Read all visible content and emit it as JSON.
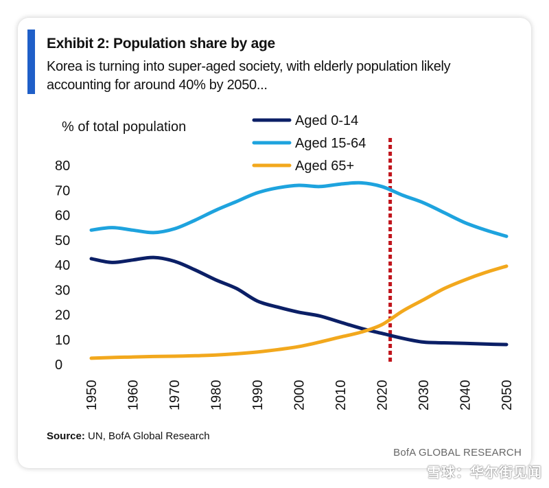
{
  "header": {
    "title": "Exhibit 2: Population share by age",
    "subtitle": "Korea is turning into super-aged society, with elderly population likely accounting for around 40% by 2050..."
  },
  "footer": {
    "source_label": "Source:",
    "source_text": " UN, BofA Global Research",
    "brand": "BofA GLOBAL RESEARCH",
    "watermark": "雪球：华尔街见闻"
  },
  "colors": {
    "accent": "#1f5fc8",
    "aged_0_14": "#0b1f66",
    "aged_15_64": "#1ea3de",
    "aged_65_plus": "#f2a81d",
    "marker_line": "#c0141b"
  },
  "chart_data": {
    "type": "line",
    "ylabel": "% of total population",
    "xlabel": "",
    "xlim": [
      1950,
      2050
    ],
    "ylim": [
      0,
      80
    ],
    "xticks": [
      "1950",
      "1960",
      "1970",
      "1980",
      "1990",
      "2000",
      "2010",
      "2020",
      "2030",
      "2040",
      "2050"
    ],
    "yticks": [
      "0",
      "10",
      "20",
      "30",
      "40",
      "50",
      "60",
      "70",
      "80"
    ],
    "grid": false,
    "legend_position": "top",
    "vertical_marker": {
      "x": 2022,
      "style": "dashed"
    },
    "x": [
      1950,
      1955,
      1960,
      1965,
      1970,
      1975,
      1980,
      1985,
      1990,
      1995,
      2000,
      2005,
      2010,
      2015,
      2020,
      2025,
      2030,
      2035,
      2040,
      2045,
      2050
    ],
    "series": [
      {
        "name": "Aged 0-14",
        "values": [
          42.5,
          41.0,
          42.0,
          43.0,
          41.5,
          38.0,
          34.0,
          30.5,
          25.5,
          23.0,
          21.0,
          19.5,
          17.0,
          14.5,
          12.5,
          10.5,
          9.0,
          8.7,
          8.5,
          8.2,
          8.0
        ]
      },
      {
        "name": "Aged 15-64",
        "values": [
          54.0,
          55.0,
          54.0,
          53.0,
          54.5,
          58.0,
          62.0,
          65.5,
          69.0,
          71.0,
          72.0,
          71.5,
          72.5,
          73.0,
          71.5,
          68.0,
          65.0,
          61.0,
          57.0,
          54.0,
          51.5
        ]
      },
      {
        "name": "Aged 65+",
        "values": [
          2.5,
          2.8,
          3.0,
          3.2,
          3.3,
          3.5,
          3.8,
          4.3,
          5.0,
          6.0,
          7.2,
          9.0,
          11.0,
          13.0,
          16.0,
          21.5,
          26.0,
          30.5,
          34.0,
          37.0,
          39.5
        ]
      }
    ]
  }
}
